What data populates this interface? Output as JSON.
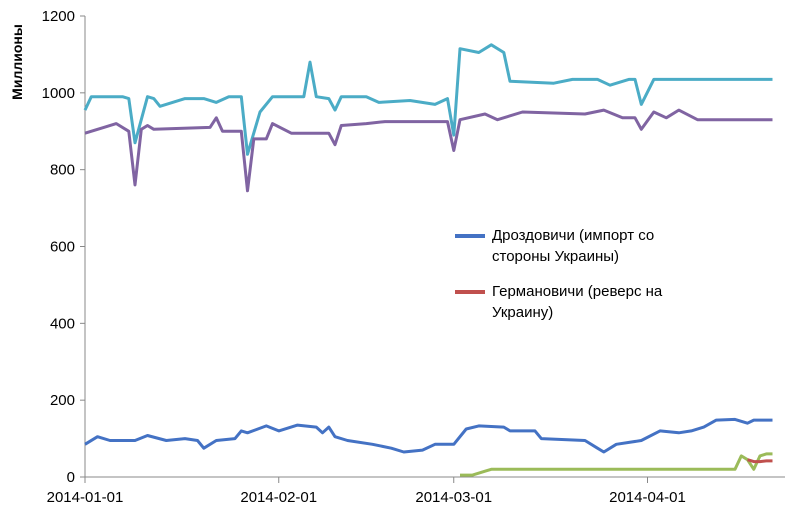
{
  "chart_data": {
    "type": "line",
    "y_label": "Миллионы",
    "xlim": [
      "2014-01-01",
      "2014-04-23"
    ],
    "xticks": [
      "2014-01-01",
      "2014-02-01",
      "2014-03-01",
      "2014-04-01"
    ],
    "ylim": [
      0,
      1200
    ],
    "yticks": [
      0,
      200,
      400,
      600,
      800,
      1000,
      1200
    ],
    "grid": false,
    "legend": "center-right",
    "series": [
      {
        "color": "#4bacc6",
        "x": [
          "2014-01-01",
          "2014-01-02",
          "2014-01-07",
          "2014-01-08",
          "2014-01-09",
          "2014-01-11",
          "2014-01-12",
          "2014-01-13",
          "2014-01-17",
          "2014-01-20",
          "2014-01-22",
          "2014-01-24",
          "2014-01-26",
          "2014-01-27",
          "2014-01-29",
          "2014-01-31",
          "2014-02-05",
          "2014-02-06",
          "2014-02-07",
          "2014-02-09",
          "2014-02-10",
          "2014-02-11",
          "2014-02-15",
          "2014-02-17",
          "2014-02-22",
          "2014-02-26",
          "2014-02-28",
          "2014-03-01",
          "2014-03-02",
          "2014-03-05",
          "2014-03-07",
          "2014-03-09",
          "2014-03-10",
          "2014-03-17",
          "2014-03-20",
          "2014-03-24",
          "2014-03-26",
          "2014-03-29",
          "2014-03-30",
          "2014-03-31",
          "2014-04-02",
          "2014-04-21"
        ],
        "values": [
          955,
          990,
          990,
          985,
          870,
          990,
          985,
          965,
          985,
          985,
          975,
          990,
          990,
          840,
          950,
          990,
          990,
          1080,
          990,
          985,
          955,
          990,
          990,
          975,
          980,
          970,
          985,
          890,
          1115,
          1105,
          1125,
          1105,
          1030,
          1025,
          1035,
          1035,
          1020,
          1035,
          1035,
          970,
          1035,
          1035
        ]
      },
      {
        "color": "#8064a2",
        "x": [
          "2014-01-01",
          "2014-01-04",
          "2014-01-06",
          "2014-01-08",
          "2014-01-09",
          "2014-01-10",
          "2014-01-11",
          "2014-01-12",
          "2014-01-21",
          "2014-01-22",
          "2014-01-23",
          "2014-01-26",
          "2014-01-27",
          "2014-01-28",
          "2014-01-30",
          "2014-01-31",
          "2014-02-03",
          "2014-02-09",
          "2014-02-10",
          "2014-02-11",
          "2014-02-15",
          "2014-02-18",
          "2014-02-28",
          "2014-03-01",
          "2014-03-02",
          "2014-03-06",
          "2014-03-08",
          "2014-03-12",
          "2014-03-22",
          "2014-03-25",
          "2014-03-28",
          "2014-03-30",
          "2014-03-31",
          "2014-04-02",
          "2014-04-04",
          "2014-04-06",
          "2014-04-09",
          "2014-04-21"
        ],
        "values": [
          895,
          910,
          920,
          900,
          760,
          905,
          915,
          905,
          910,
          935,
          900,
          900,
          745,
          880,
          880,
          920,
          895,
          895,
          865,
          915,
          920,
          925,
          925,
          850,
          930,
          945,
          930,
          950,
          945,
          955,
          935,
          935,
          905,
          950,
          935,
          955,
          930,
          930
        ]
      },
      {
        "name": "Дроздовичи (импорт со стороны Украины)",
        "color": "#4472c4",
        "x": [
          "2014-01-01",
          "2014-01-03",
          "2014-01-05",
          "2014-01-09",
          "2014-01-11",
          "2014-01-14",
          "2014-01-17",
          "2014-01-19",
          "2014-01-20",
          "2014-01-22",
          "2014-01-25",
          "2014-01-26",
          "2014-01-27",
          "2014-01-30",
          "2014-02-01",
          "2014-02-04",
          "2014-02-07",
          "2014-02-08",
          "2014-02-09",
          "2014-02-10",
          "2014-02-12",
          "2014-02-16",
          "2014-02-19",
          "2014-02-21",
          "2014-02-24",
          "2014-02-26",
          "2014-03-01",
          "2014-03-03",
          "2014-03-05",
          "2014-03-09",
          "2014-03-10",
          "2014-03-14",
          "2014-03-15",
          "2014-03-22",
          "2014-03-24",
          "2014-03-25",
          "2014-03-27",
          "2014-03-31",
          "2014-04-03",
          "2014-04-06",
          "2014-04-08",
          "2014-04-10",
          "2014-04-12",
          "2014-04-15",
          "2014-04-17",
          "2014-04-18",
          "2014-04-21"
        ],
        "values": [
          85,
          105,
          95,
          95,
          108,
          95,
          100,
          95,
          75,
          95,
          100,
          120,
          115,
          133,
          120,
          135,
          130,
          115,
          130,
          105,
          95,
          85,
          75,
          65,
          70,
          85,
          85,
          125,
          133,
          130,
          120,
          120,
          100,
          95,
          75,
          65,
          85,
          95,
          120,
          115,
          120,
          130,
          148,
          150,
          140,
          148,
          148
        ]
      },
      {
        "color": "#9bbb59",
        "x": [
          "2014-03-02",
          "2014-03-04",
          "2014-03-06",
          "2014-03-07",
          "2014-04-01",
          "2014-04-15",
          "2014-04-16",
          "2014-04-17",
          "2014-04-18",
          "2014-04-19",
          "2014-04-20",
          "2014-04-21"
        ],
        "values": [
          5,
          5,
          15,
          20,
          20,
          20,
          55,
          45,
          20,
          55,
          60,
          60
        ]
      },
      {
        "name": "Германовичи (реверс на Украину)",
        "color": "#c0504d",
        "x": [
          "2014-04-17",
          "2014-04-18",
          "2014-04-19",
          "2014-04-20",
          "2014-04-21"
        ],
        "values": [
          45,
          40,
          40,
          42,
          42
        ]
      }
    ]
  }
}
